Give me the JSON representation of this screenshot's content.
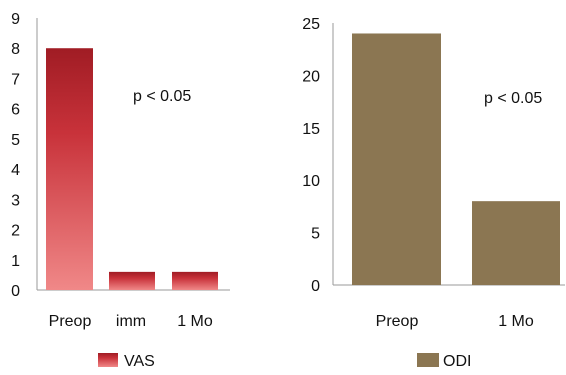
{
  "chart_data": [
    {
      "type": "bar",
      "categories": [
        "Preop",
        "imm",
        "1 Mo"
      ],
      "series": [
        {
          "name": "VAS",
          "values": [
            8,
            0.6,
            0.6
          ]
        }
      ],
      "ylim": [
        0,
        9
      ],
      "yticks": [
        0,
        1,
        2,
        3,
        4,
        5,
        6,
        7,
        8,
        9
      ],
      "annotation": "p < 0.05",
      "color": "#c8323a",
      "color_light": "#f08080",
      "grid": false,
      "legend_position": "bottom"
    },
    {
      "type": "bar",
      "categories": [
        "Preop",
        "1 Mo"
      ],
      "series": [
        {
          "name": "ODI",
          "values": [
            24,
            8
          ]
        }
      ],
      "ylim": [
        0,
        25
      ],
      "yticks": [
        0,
        5,
        10,
        15,
        20,
        25
      ],
      "annotation": "p < 0.05",
      "color": "#8b7652",
      "color_light": "#8b7652",
      "grid": false,
      "legend_position": "bottom"
    }
  ]
}
